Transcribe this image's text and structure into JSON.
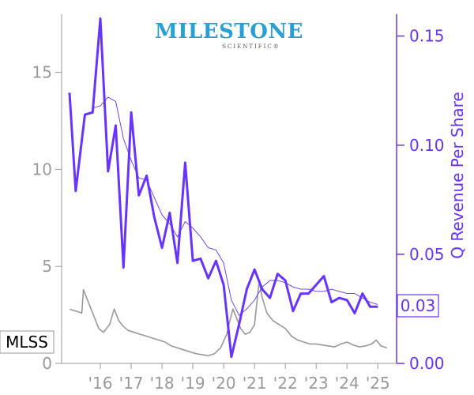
{
  "logo": {
    "name": "MILESTONE",
    "tagline": "SCIENTIFIC®"
  },
  "ticker": "MLSS",
  "colors": {
    "price": "#999999",
    "revenue": "#6633ff",
    "axis": "#9a9a9a",
    "logo": "#2a9fd6"
  },
  "chart_data": {
    "type": "line",
    "x_tick_labels": [
      "'16",
      "'17",
      "'18",
      "'19",
      "'20",
      "'21",
      "'22",
      "'23",
      "'24",
      "'25"
    ],
    "y_left": {
      "ticks": [
        0,
        5,
        10,
        15
      ],
      "range": [
        0,
        18
      ]
    },
    "y_right": {
      "label": "Q Revenue Per Share",
      "ticks": [
        "0.00",
        "0.05",
        "0.10",
        "0.15"
      ],
      "range": [
        0,
        0.16
      ]
    },
    "last_value_label": "0.03",
    "x_range": [
      2015.0,
      2025.3
    ],
    "series": [
      {
        "axis": "left",
        "style": "price",
        "x": [
          2015.0,
          2015.2,
          2015.4,
          2015.45,
          2015.6,
          2015.8,
          2015.95,
          2016.1,
          2016.3,
          2016.45,
          2016.6,
          2016.75,
          2016.9,
          2017.1,
          2017.3,
          2017.5,
          2017.7,
          2017.9,
          2018.1,
          2018.3,
          2018.5,
          2018.7,
          2018.9,
          2019.1,
          2019.3,
          2019.5,
          2019.7,
          2019.9,
          2020.1,
          2020.2,
          2020.3,
          2020.4,
          2020.55,
          2020.7,
          2020.85,
          2021.0,
          2021.1,
          2021.15,
          2021.25,
          2021.4,
          2021.6,
          2021.8,
          2022.0,
          2022.2,
          2022.4,
          2022.6,
          2022.8,
          2023.0,
          2023.2,
          2023.4,
          2023.6,
          2023.8,
          2024.0,
          2024.2,
          2024.4,
          2024.6,
          2024.8,
          2024.95,
          2025.1,
          2025.3
        ],
        "values": [
          2.8,
          2.7,
          2.6,
          3.8,
          3.2,
          2.4,
          1.8,
          1.6,
          2.0,
          2.8,
          2.2,
          1.9,
          1.7,
          1.6,
          1.5,
          1.4,
          1.3,
          1.2,
          1.1,
          0.9,
          0.8,
          0.7,
          0.6,
          0.5,
          0.45,
          0.4,
          0.5,
          0.8,
          1.5,
          2.2,
          2.8,
          2.4,
          1.8,
          1.5,
          1.6,
          2.0,
          3.5,
          4.2,
          3.4,
          2.6,
          2.2,
          2.0,
          1.8,
          1.4,
          1.2,
          1.1,
          1.0,
          1.0,
          0.95,
          0.9,
          0.85,
          1.0,
          1.1,
          0.95,
          0.85,
          0.9,
          1.0,
          1.2,
          0.9,
          0.8
        ]
      },
      {
        "axis": "right",
        "style": "revenue_thick",
        "x": [
          2015.0,
          2015.2,
          2015.5,
          2015.75,
          2016.0,
          2016.25,
          2016.5,
          2016.75,
          2017.0,
          2017.25,
          2017.5,
          2017.75,
          2018.0,
          2018.25,
          2018.5,
          2018.75,
          2019.0,
          2019.25,
          2019.5,
          2019.75,
          2020.0,
          2020.25,
          2020.5,
          2020.75,
          2021.0,
          2021.25,
          2021.5,
          2021.75,
          2022.0,
          2022.25,
          2022.5,
          2022.75,
          2023.0,
          2023.25,
          2023.5,
          2023.75,
          2024.0,
          2024.25,
          2024.5,
          2024.75,
          2025.0
        ],
        "values": [
          0.124,
          0.079,
          0.114,
          0.115,
          0.158,
          0.088,
          0.109,
          0.044,
          0.115,
          0.077,
          0.086,
          0.067,
          0.053,
          0.069,
          0.046,
          0.092,
          0.047,
          0.048,
          0.039,
          0.047,
          0.036,
          0.003,
          0.018,
          0.034,
          0.043,
          0.034,
          0.03,
          0.041,
          0.038,
          0.024,
          0.032,
          0.032,
          0.036,
          0.04,
          0.028,
          0.03,
          0.029,
          0.023,
          0.032,
          0.026,
          0.026
        ]
      },
      {
        "axis": "right",
        "style": "revenue_thin",
        "x": [
          2015.75,
          2016.0,
          2016.25,
          2016.5,
          2016.75,
          2017.0,
          2017.25,
          2017.5,
          2017.75,
          2018.0,
          2018.25,
          2018.5,
          2018.75,
          2019.0,
          2019.25,
          2019.5,
          2019.75,
          2020.0,
          2020.25,
          2020.5,
          2020.75,
          2021.0,
          2021.25,
          2021.5,
          2021.75,
          2022.0,
          2022.25,
          2022.5,
          2022.75,
          2023.0,
          2023.25,
          2023.5,
          2023.75,
          2024.0,
          2024.25,
          2024.5,
          2024.75,
          2025.0
        ],
        "values": [
          0.117,
          0.118,
          0.122,
          0.12,
          0.103,
          0.093,
          0.085,
          0.084,
          0.076,
          0.068,
          0.064,
          0.058,
          0.065,
          0.062,
          0.058,
          0.053,
          0.052,
          0.046,
          0.029,
          0.022,
          0.025,
          0.029,
          0.035,
          0.038,
          0.038,
          0.037,
          0.035,
          0.034,
          0.034,
          0.033,
          0.033,
          0.034,
          0.033,
          0.032,
          0.032,
          0.03,
          0.028,
          0.027
        ]
      }
    ]
  }
}
